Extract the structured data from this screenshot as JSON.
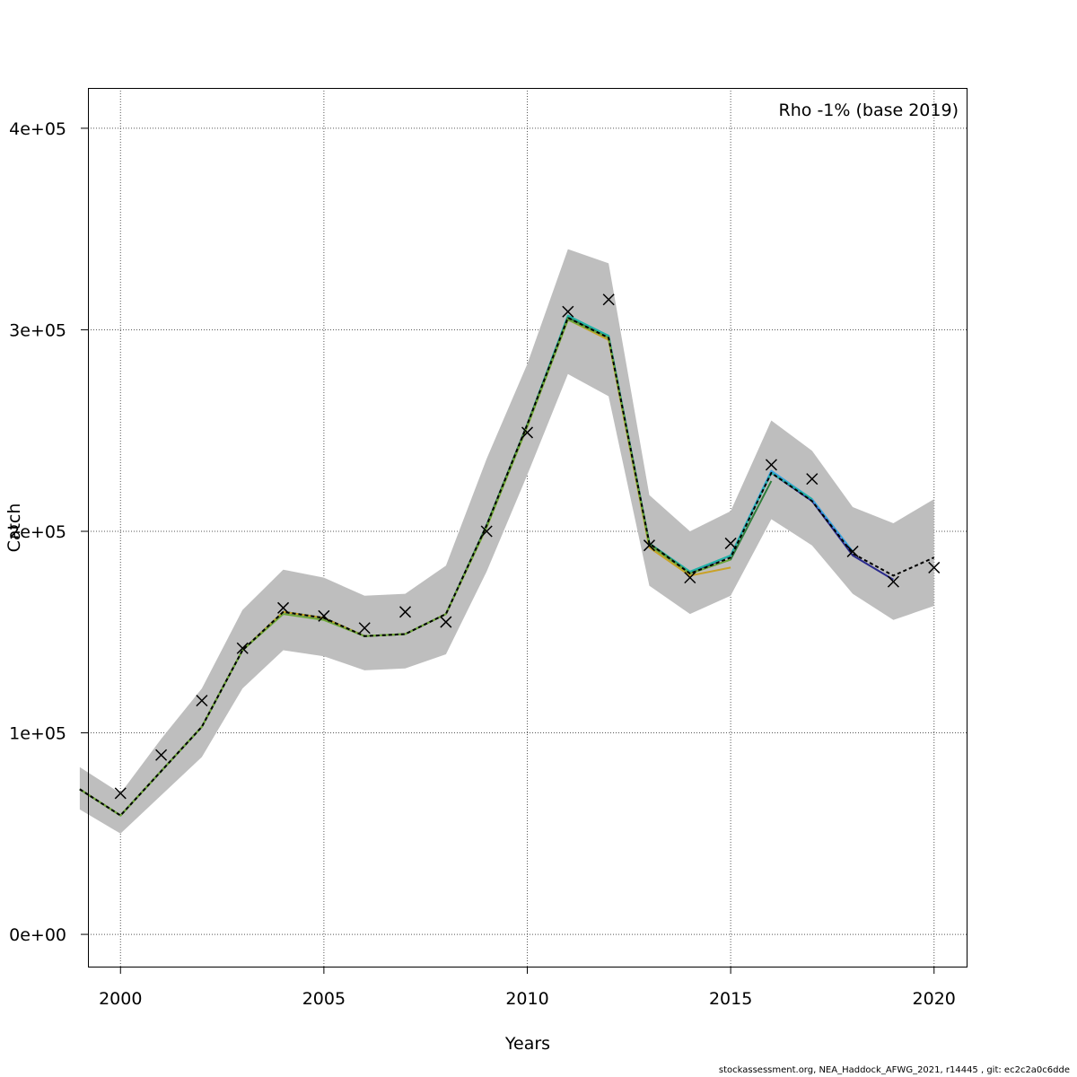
{
  "footer_text": "stockassessment.org, NEA_Haddock_AFWG_2021, r14445 , git: ec2c2a0c6dde",
  "chart_data": {
    "type": "line",
    "title": "",
    "annotation": "Rho -1% (base 2019)",
    "xlabel": "Years",
    "ylabel": "Catch",
    "xlim": [
      1999.2,
      2020.8
    ],
    "ylim": [
      -16000,
      420000
    ],
    "x_ticks": [
      2000,
      2005,
      2010,
      2015,
      2020
    ],
    "y_ticks": [
      0,
      100000,
      200000,
      300000,
      400000
    ],
    "y_tick_labels": [
      "0e+00",
      "1e+05",
      "2e+05",
      "3e+05",
      "4e+05"
    ],
    "grid": true,
    "grid_style": "dotted",
    "band_color": "#bebebe",
    "confidence_band": {
      "x": [
        1999,
        2000,
        2001,
        2002,
        2003,
        2004,
        2005,
        2006,
        2007,
        2008,
        2009,
        2010,
        2011,
        2012,
        2013,
        2014,
        2015,
        2016,
        2017,
        2018,
        2019,
        2020
      ],
      "lower": [
        62000,
        50000,
        69000,
        88000,
        122000,
        141000,
        138000,
        131000,
        132000,
        139000,
        180000,
        228000,
        278000,
        267000,
        173000,
        159000,
        168000,
        206000,
        193000,
        169000,
        156000,
        163000
      ],
      "upper": [
        83000,
        70000,
        97000,
        122000,
        161000,
        181000,
        177000,
        168000,
        169000,
        183000,
        236000,
        283000,
        340000,
        333000,
        218000,
        200000,
        210000,
        255000,
        240000,
        212000,
        204000,
        216000
      ]
    },
    "observed_marker": "x",
    "observed": {
      "x": [
        2000,
        2001,
        2002,
        2003,
        2004,
        2005,
        2006,
        2007,
        2008,
        2009,
        2010,
        2011,
        2012,
        2013,
        2014,
        2015,
        2016,
        2017,
        2018,
        2019,
        2020
      ],
      "y": [
        70000,
        89000,
        116000,
        142000,
        162000,
        158000,
        152000,
        160000,
        155000,
        200000,
        249000,
        309000,
        315000,
        193000,
        177000,
        194000,
        233000,
        226000,
        190000,
        175000,
        182000
      ]
    },
    "series": [
      {
        "color": "#000000",
        "dashed": true,
        "x": [
          1999,
          2000,
          2001,
          2002,
          2003,
          2004,
          2005,
          2006,
          2007,
          2008,
          2009,
          2010,
          2011,
          2012,
          2013,
          2014,
          2015,
          2016,
          2017,
          2018,
          2019,
          2020
        ],
        "y": [
          72000,
          59000,
          81000,
          103000,
          141000,
          160000,
          157000,
          148000,
          149000,
          159000,
          203000,
          253000,
          306000,
          296000,
          194000,
          179000,
          187000,
          229000,
          215000,
          189000,
          178000,
          187000
        ]
      },
      {
        "color": "#2a2a8c",
        "x": [
          1999,
          2000,
          2001,
          2002,
          2003,
          2004,
          2005,
          2006,
          2007,
          2008,
          2009,
          2010,
          2011,
          2012,
          2013,
          2014,
          2015,
          2016,
          2017,
          2018,
          2019
        ],
        "y": [
          72000,
          59000,
          81000,
          103000,
          141000,
          160000,
          157000,
          148000,
          149000,
          159000,
          203000,
          253000,
          306000,
          297000,
          194000,
          179000,
          188000,
          229000,
          215000,
          188000,
          176000
        ]
      },
      {
        "color": "#3aa3e0",
        "x": [
          1999,
          2000,
          2001,
          2002,
          2003,
          2004,
          2005,
          2006,
          2007,
          2008,
          2009,
          2010,
          2011,
          2012,
          2013,
          2014,
          2015,
          2016,
          2017,
          2018
        ],
        "y": [
          72000,
          59000,
          81000,
          103000,
          141000,
          160000,
          157000,
          148000,
          149000,
          159000,
          203000,
          253000,
          307000,
          297000,
          194000,
          180000,
          188000,
          230000,
          216000,
          190000
        ]
      },
      {
        "color": "#22b3a4",
        "x": [
          1999,
          2000,
          2001,
          2002,
          2003,
          2004,
          2005,
          2006,
          2007,
          2008,
          2009,
          2010,
          2011,
          2012,
          2013,
          2014,
          2015,
          2016,
          2017
        ],
        "y": [
          72000,
          59000,
          81000,
          103000,
          141000,
          160000,
          157000,
          148000,
          149000,
          159000,
          203000,
          253000,
          307000,
          297000,
          194000,
          180000,
          188000,
          229000,
          216000
        ]
      },
      {
        "color": "#2f7d3a",
        "x": [
          1999,
          2000,
          2001,
          2002,
          2003,
          2004,
          2005,
          2006,
          2007,
          2008,
          2009,
          2010,
          2011,
          2012,
          2013,
          2014,
          2015,
          2016
        ],
        "y": [
          72000,
          59000,
          81000,
          103000,
          141000,
          160000,
          157000,
          148000,
          149000,
          159000,
          203000,
          253000,
          306000,
          296000,
          194000,
          179000,
          186000,
          225000
        ]
      },
      {
        "color": "#c9a227",
        "x": [
          1999,
          2000,
          2001,
          2002,
          2003,
          2004,
          2005,
          2006,
          2007,
          2008,
          2009,
          2010,
          2011,
          2012,
          2013,
          2014,
          2015
        ],
        "y": [
          72000,
          59000,
          81000,
          103000,
          141000,
          160000,
          157000,
          148000,
          149000,
          159000,
          202000,
          252000,
          305000,
          295000,
          192000,
          178000,
          182000
        ]
      },
      {
        "color": "#6fa83a",
        "x": [
          1999,
          2000,
          2001,
          2002,
          2003,
          2004,
          2005,
          2006,
          2007,
          2008,
          2009,
          2010,
          2011,
          2012,
          2013,
          2014,
          2015
        ],
        "y": [
          72000,
          59000,
          81000,
          103000,
          141000,
          159000,
          156000,
          148000,
          149000,
          159000,
          202000,
          252000,
          305000,
          296000,
          193000,
          179000,
          186000
        ]
      }
    ]
  }
}
